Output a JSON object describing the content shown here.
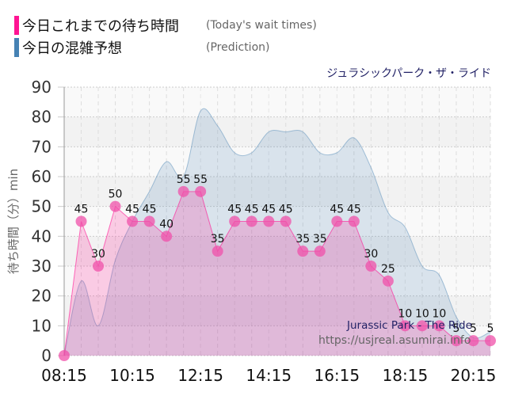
{
  "legend": {
    "items": [
      {
        "label_jp": "今日これまでの待ち時間",
        "label_en": "(Today's wait times)",
        "color": "#ff1493"
      },
      {
        "label_jp": "今日の混雑予想",
        "label_en": "(Prediction)",
        "color": "#4682b4"
      }
    ]
  },
  "title": "ジュラシックパーク・ザ・ライド",
  "watermark": {
    "name": "Jurassic Park - The Ride",
    "url": "https://usjreal.asumirai.info"
  },
  "chart_data": {
    "type": "area",
    "title": "ジュラシックパーク・ザ・ライド",
    "xlabel": "",
    "ylabel": "待ち時間（分）min",
    "ylim": [
      0,
      90
    ],
    "yticks": [
      0,
      10,
      20,
      30,
      40,
      50,
      60,
      70,
      80,
      90
    ],
    "xtick_labels": [
      "08:15",
      "10:15",
      "12:15",
      "14:15",
      "16:15",
      "18:15",
      "20:15"
    ],
    "grid": true,
    "legend_position": "top-left",
    "x": [
      "08:15",
      "08:45",
      "09:15",
      "09:45",
      "10:15",
      "10:45",
      "11:15",
      "11:45",
      "12:15",
      "12:45",
      "13:15",
      "13:45",
      "14:15",
      "14:45",
      "15:15",
      "15:45",
      "16:15",
      "16:45",
      "17:15",
      "17:45",
      "18:15",
      "18:45",
      "19:15",
      "19:45",
      "20:15",
      "20:45"
    ],
    "series": [
      {
        "name": "今日これまでの待ち時間 (Today's wait times)",
        "color": "#ff1493",
        "values": [
          0,
          45,
          30,
          50,
          45,
          45,
          40,
          55,
          55,
          35,
          45,
          45,
          45,
          45,
          35,
          35,
          45,
          45,
          30,
          25,
          10,
          10,
          10,
          5,
          5,
          5
        ]
      },
      {
        "name": "今日の混雑予想 (Prediction)",
        "color": "#4682b4",
        "values": [
          0,
          25,
          10,
          32,
          45,
          55,
          65,
          60,
          82,
          77,
          68,
          68,
          75,
          75,
          75,
          68,
          68,
          73,
          63,
          48,
          43,
          30,
          27,
          13,
          6,
          8
        ]
      }
    ]
  }
}
